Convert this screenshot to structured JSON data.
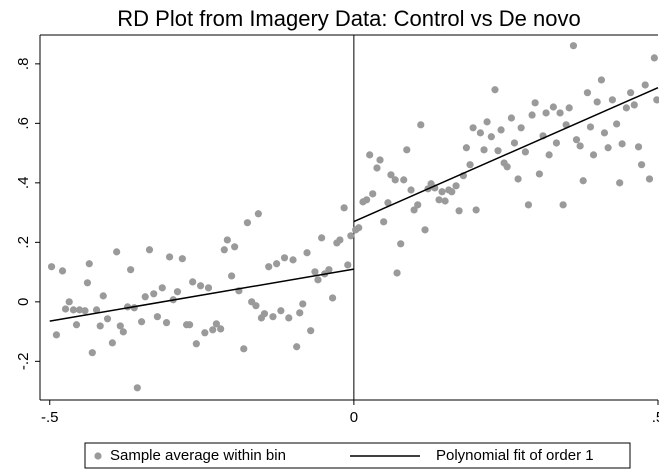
{
  "chart_data": {
    "type": "scatter",
    "title": "RD Plot from Imagery Data: Control vs De novo",
    "xlim": [
      -0.516,
      0.5
    ],
    "ylim": [
      -0.33,
      0.897
    ],
    "xticks": [
      {
        "value": -0.5,
        "label": "-.5"
      },
      0,
      {
        "value": 0.5,
        "label": ".5"
      }
    ],
    "yticks": [
      {
        "value": -0.2,
        "label": "-.2"
      },
      0,
      {
        "value": 0.2,
        "label": ".2"
      },
      {
        "value": 0.4,
        "label": ".4"
      },
      {
        "value": 0.6,
        "label": ".6"
      },
      {
        "value": 0.8,
        "label": ".8"
      }
    ],
    "xline": 0,
    "series": [
      {
        "name": "Sample average within bin",
        "color": "#9a9a9a",
        "mode": "markers",
        "x": [
          -0.497,
          -0.489,
          -0.479,
          -0.474,
          -0.468,
          -0.461,
          -0.456,
          -0.451,
          -0.442,
          -0.438,
          -0.435,
          -0.43,
          -0.423,
          -0.417,
          -0.412,
          -0.405,
          -0.397,
          -0.39,
          -0.384,
          -0.379,
          -0.372,
          -0.367,
          -0.361,
          -0.356,
          -0.349,
          -0.343,
          -0.336,
          -0.329,
          -0.323,
          -0.315,
          -0.308,
          -0.303,
          -0.297,
          -0.29,
          -0.282,
          -0.275,
          -0.27,
          -0.265,
          -0.259,
          -0.252,
          -0.245,
          -0.239,
          -0.232,
          -0.226,
          -0.219,
          -0.213,
          -0.208,
          -0.201,
          -0.196,
          -0.189,
          -0.181,
          -0.175,
          -0.168,
          -0.161,
          -0.157,
          -0.152,
          -0.147,
          -0.14,
          -0.133,
          -0.127,
          -0.12,
          -0.114,
          -0.107,
          -0.1,
          -0.094,
          -0.089,
          -0.084,
          -0.077,
          -0.071,
          -0.064,
          -0.059,
          -0.053,
          -0.048,
          -0.041,
          -0.035,
          -0.028,
          -0.023,
          -0.016,
          -0.01,
          -0.005,
          0.003,
          0.008,
          0.015,
          0.021,
          0.026,
          0.031,
          0.038,
          0.043,
          0.049,
          0.056,
          0.061,
          0.068,
          0.071,
          0.077,
          0.082,
          0.087,
          0.094,
          0.099,
          0.105,
          0.11,
          0.117,
          0.122,
          0.127,
          0.133,
          0.14,
          0.145,
          0.15,
          0.156,
          0.161,
          0.168,
          0.173,
          0.18,
          0.185,
          0.191,
          0.196,
          0.201,
          0.208,
          0.214,
          0.219,
          0.226,
          0.232,
          0.237,
          0.242,
          0.247,
          0.252,
          0.259,
          0.264,
          0.27,
          0.275,
          0.282,
          0.287,
          0.293,
          0.298,
          0.305,
          0.311,
          0.316,
          0.321,
          0.328,
          0.333,
          0.339,
          0.344,
          0.349,
          0.354,
          0.361,
          0.366,
          0.372,
          0.377,
          0.384,
          0.389,
          0.394,
          0.4,
          0.407,
          0.412,
          0.418,
          0.425,
          0.432,
          0.437,
          0.441,
          0.448,
          0.455,
          0.461,
          0.468,
          0.473,
          0.479,
          0.486,
          0.494,
          0.498
        ],
        "values": [
          0.118,
          -0.111,
          0.104,
          -0.024,
          0.0,
          -0.027,
          -0.077,
          -0.027,
          -0.03,
          0.064,
          0.128,
          -0.171,
          -0.027,
          -0.081,
          0.02,
          -0.057,
          -0.138,
          0.168,
          -0.081,
          -0.101,
          -0.017,
          0.108,
          -0.02,
          -0.289,
          -0.067,
          0.017,
          0.175,
          0.027,
          -0.05,
          0.047,
          -0.07,
          0.151,
          0.007,
          0.034,
          0.145,
          -0.077,
          -0.077,
          0.067,
          -0.141,
          0.054,
          -0.104,
          0.047,
          -0.094,
          -0.074,
          -0.091,
          0.175,
          0.208,
          0.087,
          0.185,
          0.037,
          -0.158,
          0.266,
          0.0,
          -0.013,
          0.296,
          -0.054,
          -0.04,
          0.118,
          -0.05,
          0.128,
          -0.03,
          0.148,
          -0.054,
          0.141,
          -0.151,
          -0.037,
          -0.007,
          0.165,
          -0.097,
          0.101,
          0.074,
          0.215,
          0.094,
          0.108,
          0.013,
          0.198,
          0.208,
          0.316,
          0.124,
          0.222,
          0.242,
          0.249,
          0.336,
          0.343,
          0.494,
          0.363,
          0.45,
          0.477,
          0.269,
          0.333,
          0.427,
          0.41,
          0.097,
          0.195,
          0.41,
          0.511,
          0.376,
          0.309,
          0.326,
          0.595,
          0.242,
          0.38,
          0.397,
          0.383,
          0.343,
          0.37,
          0.339,
          0.376,
          0.37,
          0.39,
          0.306,
          0.424,
          0.518,
          0.461,
          0.585,
          0.309,
          0.568,
          0.511,
          0.605,
          0.555,
          0.713,
          0.508,
          0.578,
          0.467,
          0.454,
          0.618,
          0.534,
          0.413,
          0.585,
          0.504,
          0.326,
          0.628,
          0.669,
          0.43,
          0.558,
          0.635,
          0.494,
          0.655,
          0.534,
          0.635,
          0.326,
          0.595,
          0.652,
          0.861,
          0.545,
          0.524,
          0.407,
          0.703,
          0.588,
          0.494,
          0.672,
          0.746,
          0.568,
          0.518,
          0.679,
          0.598,
          0.4,
          0.531,
          0.652,
          0.703,
          0.662,
          0.521,
          0.461,
          0.729,
          0.413,
          0.82,
          0.679
        ]
      },
      {
        "name": "Polynomial fit of order 1",
        "color": "#000000",
        "mode": "line",
        "x": [
          -0.5,
          0,
          null,
          0,
          0.5
        ],
        "values": [
          -0.065,
          0.11,
          null,
          0.27,
          0.72
        ]
      }
    ],
    "legend": "bottom"
  }
}
